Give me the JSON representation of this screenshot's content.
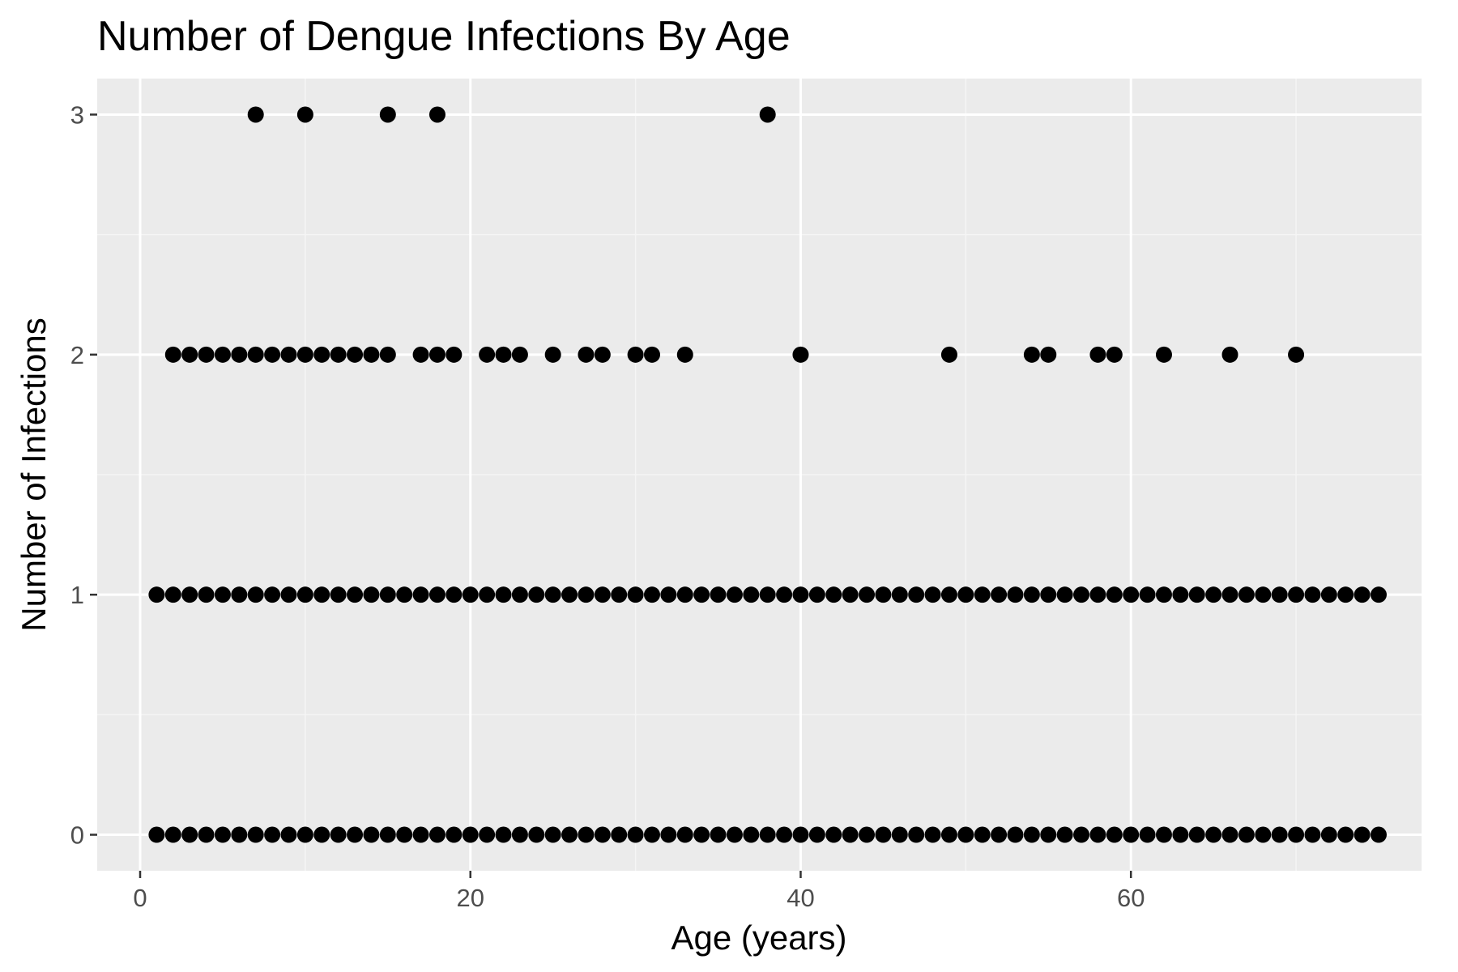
{
  "chart_data": {
    "type": "scatter",
    "title": "Number of Dengue Infections By Age",
    "xlabel": "Age (years)",
    "ylabel": "Number of Infections",
    "xlim": [
      -2.6,
      77.6
    ],
    "ylim": [
      -0.15,
      3.15
    ],
    "x_ticks": [
      0,
      20,
      40,
      60
    ],
    "x_tick_labels": [
      "0",
      "20",
      "40",
      "60"
    ],
    "y_ticks": [
      0,
      1,
      2,
      3
    ],
    "y_tick_labels": [
      "0",
      "1",
      "2",
      "3"
    ],
    "grid": true,
    "legend": "none",
    "colors": {
      "panel_background": "#ebebeb",
      "grid_major": "#ffffff",
      "grid_minor": "#f5f5f5",
      "point": "#000000",
      "tick_mark": "#333333"
    },
    "series": [
      {
        "y": 0,
        "x": [
          1,
          2,
          3,
          4,
          5,
          6,
          7,
          8,
          9,
          10,
          11,
          12,
          13,
          14,
          15,
          16,
          17,
          18,
          19,
          20,
          21,
          22,
          23,
          24,
          25,
          26,
          27,
          28,
          29,
          30,
          31,
          32,
          33,
          34,
          35,
          36,
          37,
          38,
          39,
          40,
          41,
          42,
          43,
          44,
          45,
          46,
          47,
          48,
          49,
          50,
          51,
          52,
          53,
          54,
          55,
          56,
          57,
          58,
          59,
          60,
          61,
          62,
          63,
          64,
          65,
          66,
          67,
          68,
          69,
          70,
          71,
          72,
          73,
          74,
          75
        ]
      },
      {
        "y": 1,
        "x": [
          1,
          2,
          3,
          4,
          5,
          6,
          7,
          8,
          9,
          10,
          11,
          12,
          13,
          14,
          15,
          16,
          17,
          18,
          19,
          20,
          21,
          22,
          23,
          24,
          25,
          26,
          27,
          28,
          29,
          30,
          31,
          32,
          33,
          34,
          35,
          36,
          37,
          38,
          39,
          40,
          41,
          42,
          43,
          44,
          45,
          46,
          47,
          48,
          49,
          50,
          51,
          52,
          53,
          54,
          55,
          56,
          57,
          58,
          59,
          60,
          61,
          62,
          63,
          64,
          65,
          66,
          67,
          68,
          69,
          70,
          71,
          72,
          73,
          74,
          75
        ]
      },
      {
        "y": 2,
        "x": [
          2,
          3,
          4,
          5,
          6,
          7,
          8,
          9,
          10,
          11,
          12,
          13,
          14,
          15,
          17,
          18,
          19,
          21,
          22,
          23,
          25,
          27,
          28,
          30,
          31,
          33,
          40,
          49,
          54,
          55,
          58,
          59,
          62,
          66,
          70
        ]
      },
      {
        "y": 3,
        "x": [
          7,
          10,
          15,
          18,
          38
        ]
      }
    ]
  }
}
